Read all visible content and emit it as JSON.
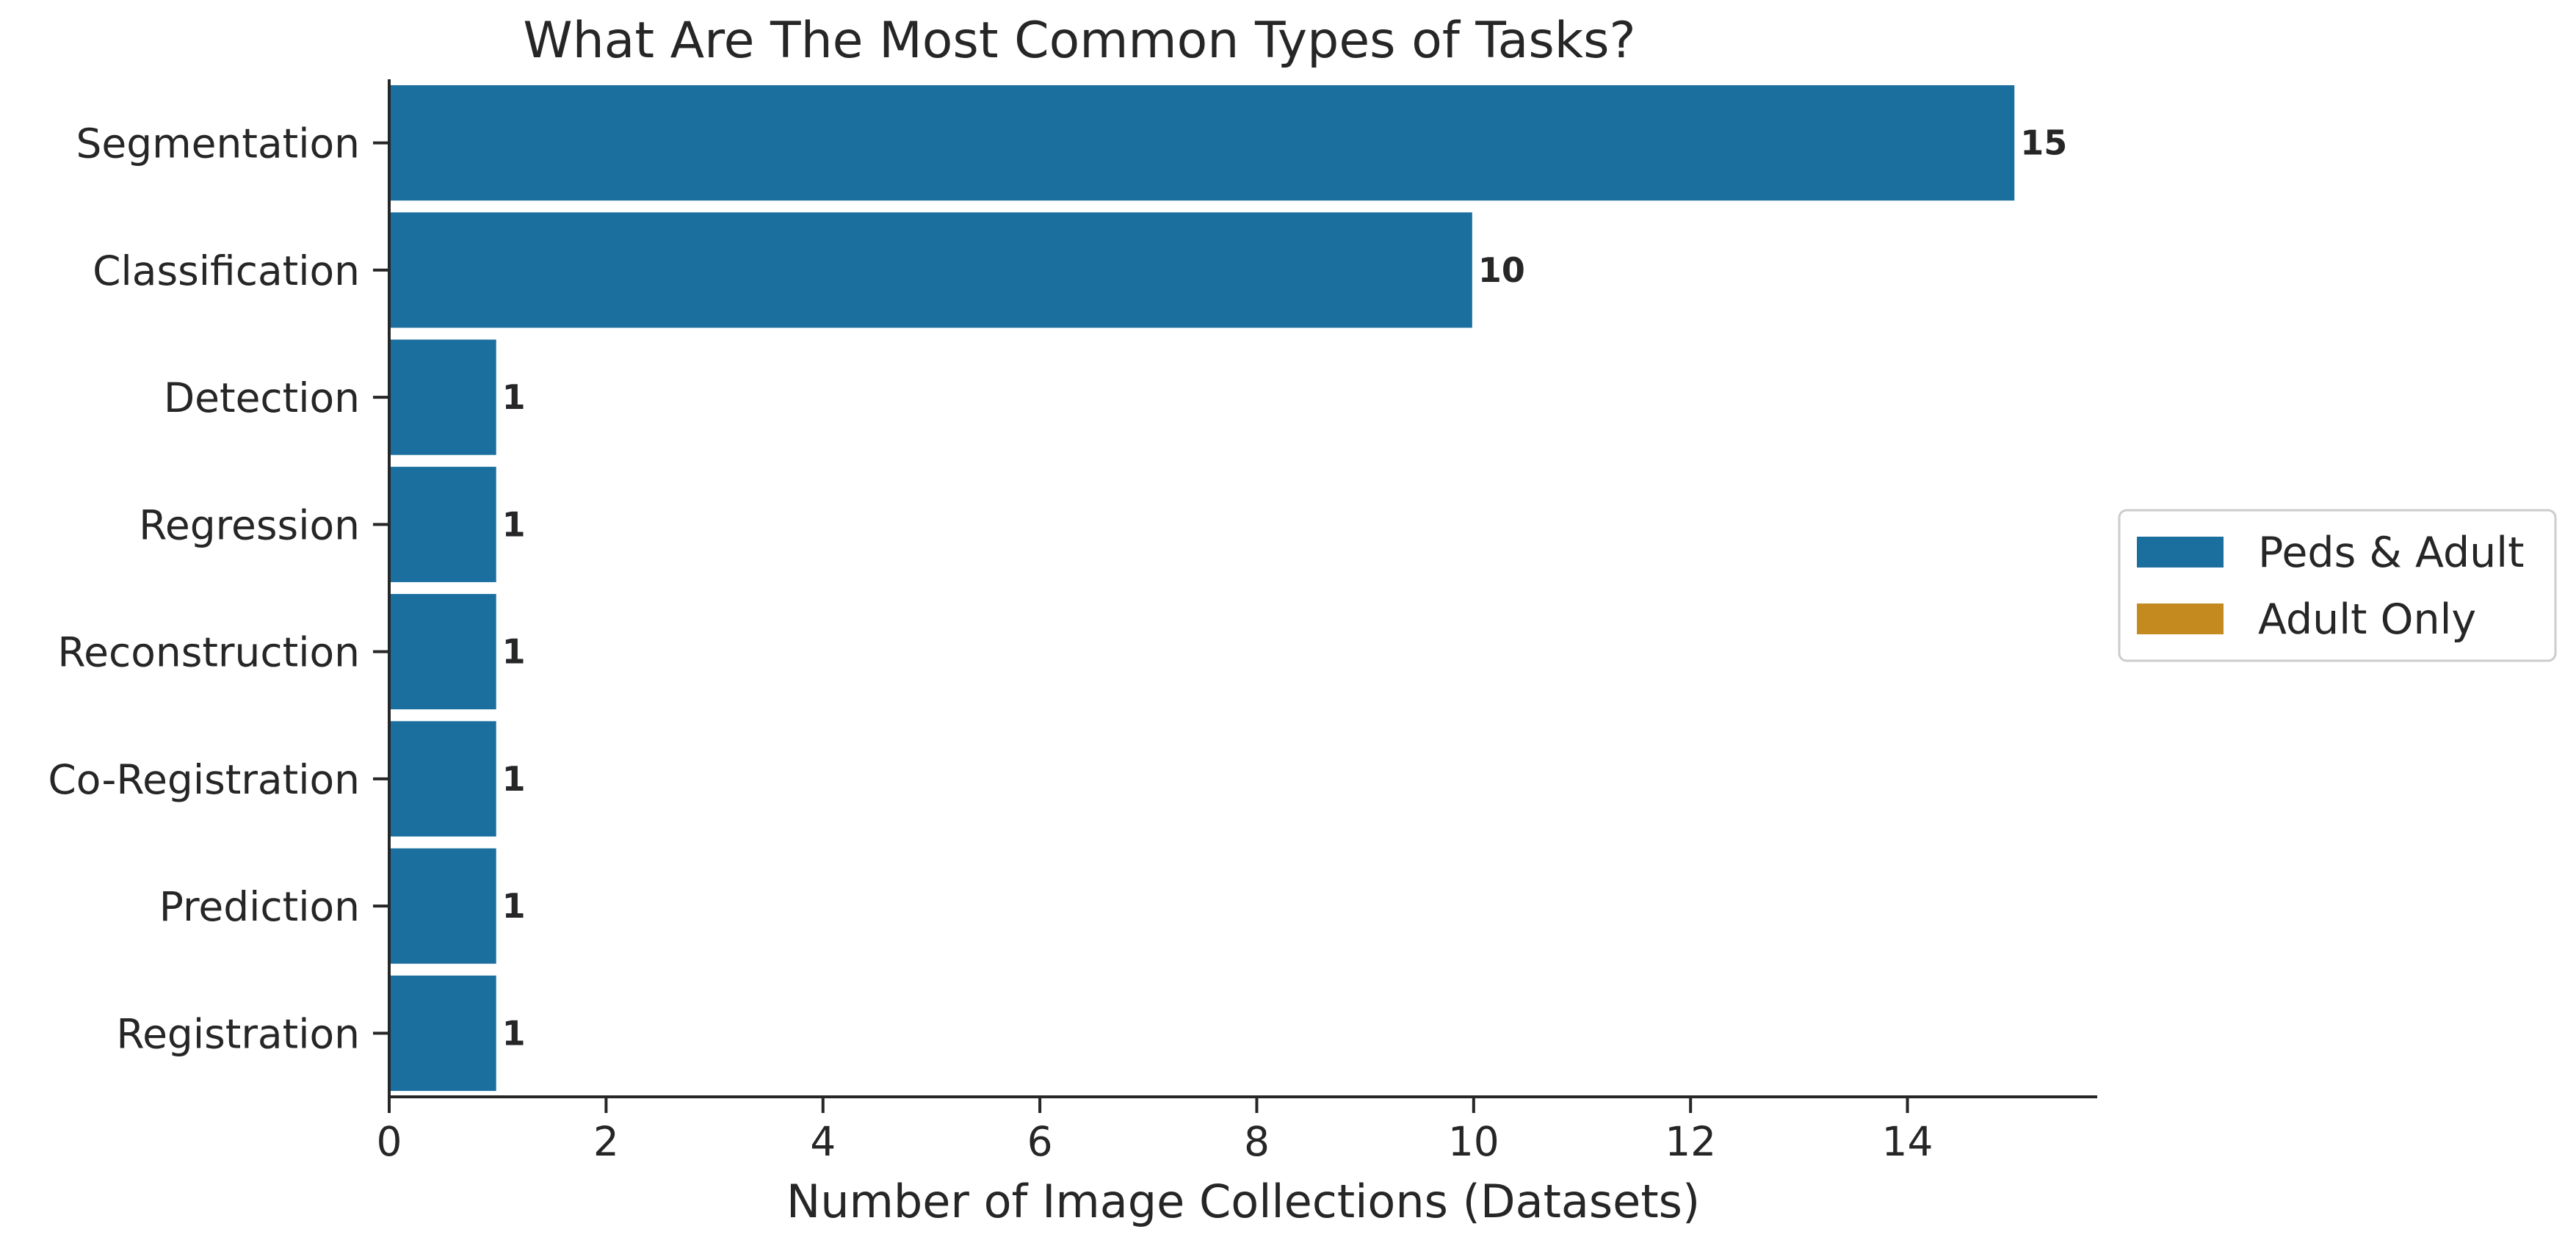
{
  "chart_data": {
    "type": "bar",
    "orientation": "horizontal",
    "title": "What Are The Most Common Types of Tasks?",
    "xlabel": "Number of Image Collections (Datasets)",
    "ylabel": "",
    "xlim": [
      0,
      15.75
    ],
    "xticks": [
      0,
      2,
      4,
      6,
      8,
      10,
      12,
      14
    ],
    "categories": [
      "Segmentation",
      "Classification",
      "Detection",
      "Regression",
      "Reconstruction",
      "Co-Registration",
      "Prediction",
      "Registration"
    ],
    "series": [
      {
        "name": "Peds & Adult",
        "color": "#1a6f9f",
        "values": [
          15,
          10,
          1,
          1,
          1,
          1,
          1,
          1
        ]
      },
      {
        "name": "Adult Only",
        "color": "#c48a1f",
        "values": [
          0,
          0,
          0,
          0,
          0,
          0,
          0,
          0
        ]
      }
    ],
    "data_labels": [
      "15",
      "10",
      "1",
      "1",
      "1",
      "1",
      "1",
      "1"
    ],
    "grid": false,
    "legend_position": "outside-right"
  }
}
